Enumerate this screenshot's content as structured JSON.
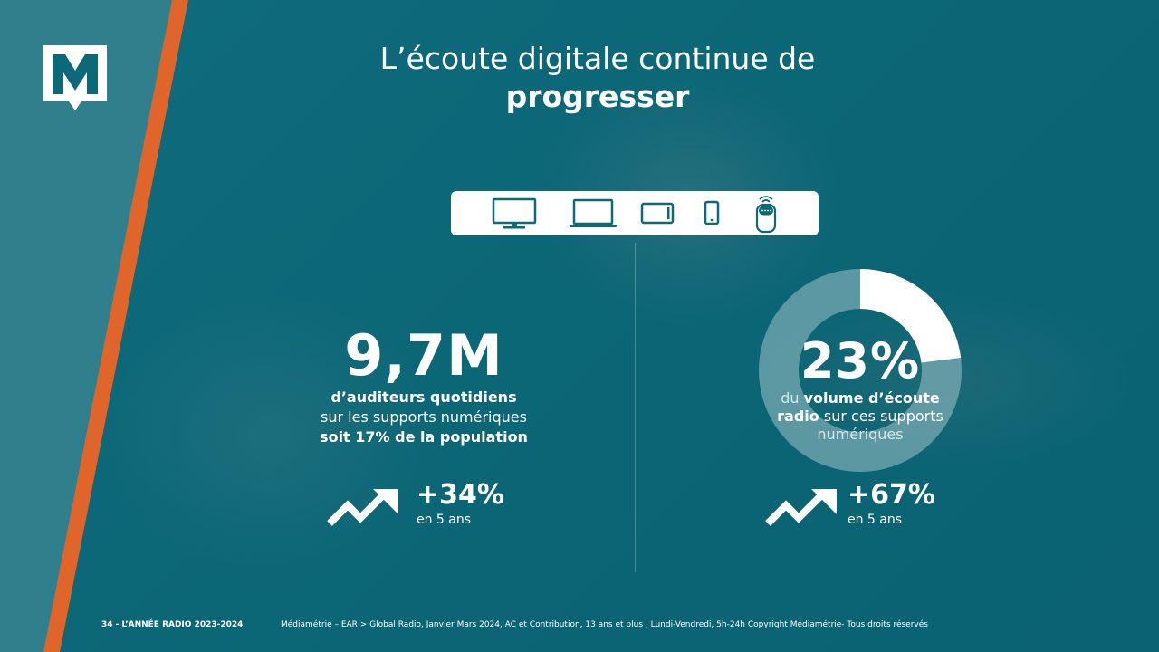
{
  "title": {
    "line1": "L’écoute digitale continue de",
    "line2": "progresser"
  },
  "devices": [
    "tv-icon",
    "laptop-icon",
    "tablet-icon",
    "smartphone-icon",
    "smart-speaker-icon"
  ],
  "left_stat": {
    "value": "9,7M",
    "line1": "d’auditeurs quotidiens",
    "line2": "sur les supports numériques",
    "line3": "soit 17% de la population",
    "growth": "+34%",
    "growth_period": "en 5 ans"
  },
  "right_stat": {
    "value": "23%",
    "line1_prefix": "du ",
    "line1_bold": "volume d’écoute",
    "line2_bold": "radio",
    "line2_rest": " sur ces supports",
    "line3": "numériques",
    "share": 0.23,
    "growth": "+67%",
    "growth_period": "en 5 ans"
  },
  "footer": {
    "page": "34 - L’ANNÉE RADIO 2023-2024",
    "source": "Médiamétrie – EAR > Global Radio, Janvier Mars 2024, AC et Contribution, 13 ans et plus , Lundi-Vendredi, 5h-24h  Copyright Médiamétrie- Tous droits réservés"
  },
  "colors": {
    "teal": "#0d6878",
    "orange": "#e0652b",
    "white": "#ffffff"
  }
}
